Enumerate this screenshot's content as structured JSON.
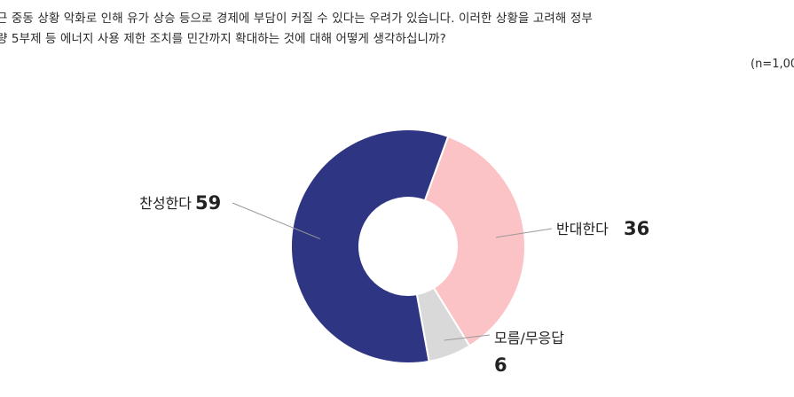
{
  "question": {
    "line1": "근 중동 상황 악화로 인해 유가 상승 등으로 경제에 부담이 커질 수 있다는 우려가 있습니다. 이러한 상황을 고려해 정부",
    "line2": "량 5부제 등 에너지 사용 제한 조치를 민간까지 확대하는 것에 대해 어떻게 생각하십니까?",
    "sample": "(n=1,00"
  },
  "chart_data": {
    "type": "pie",
    "donut": true,
    "categories": [
      "찬성한다",
      "반대한다",
      "모름/무응답"
    ],
    "values": [
      59,
      36,
      6
    ],
    "colors": [
      "#2e3582",
      "#fbc3c5",
      "#d9d9d9"
    ]
  }
}
